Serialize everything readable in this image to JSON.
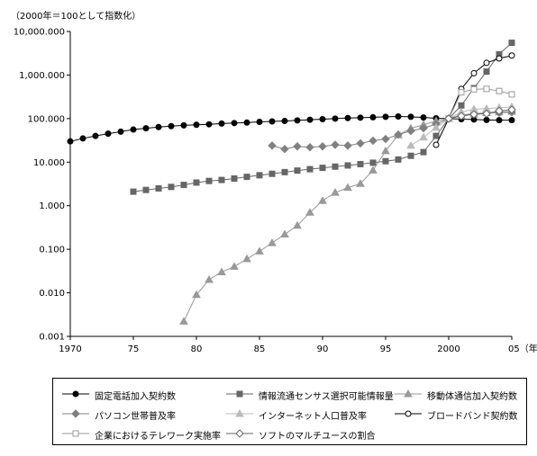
{
  "chart_data": {
    "type": "line",
    "note": "（2000年＝100として指数化）",
    "y_scale": "log",
    "ylim": [
      0.001,
      10000
    ],
    "xlim": [
      1970,
      2005
    ],
    "y_ticks": [
      "10,000.000",
      "1,000.000",
      "100.000",
      "10.000",
      "1.000",
      "0.100",
      "0.010",
      "0.001"
    ],
    "y_tick_values": [
      10000,
      1000,
      100,
      10,
      1,
      0.1,
      0.01,
      0.001
    ],
    "x_ticks": [
      "1970",
      "75",
      "80",
      "85",
      "90",
      "95",
      "2000",
      "05（年）"
    ],
    "x_tick_values": [
      1970,
      1975,
      1980,
      1985,
      1990,
      1995,
      2000,
      2005
    ],
    "series": [
      {
        "name": "固定電話加入契約数",
        "marker": "circle",
        "color": "#000000",
        "x": [
          1970,
          1971,
          1972,
          1973,
          1974,
          1975,
          1976,
          1977,
          1978,
          1979,
          1980,
          1981,
          1982,
          1983,
          1984,
          1985,
          1986,
          1987,
          1988,
          1989,
          1990,
          1991,
          1992,
          1993,
          1994,
          1995,
          1996,
          1997,
          1998,
          1999,
          2000,
          2001,
          2002,
          2003,
          2004,
          2005
        ],
        "y": [
          30,
          35,
          40,
          45,
          50,
          56,
          60,
          64,
          67,
          70,
          72,
          74,
          77,
          79,
          81,
          84,
          86,
          88,
          91,
          94,
          97,
          100,
          103,
          105,
          107,
          110,
          112,
          110,
          106,
          102,
          100,
          97,
          95,
          93,
          92,
          92
        ]
      },
      {
        "name": "情報流通センサス選択可能情報量",
        "marker": "square",
        "color": "#666666",
        "x": [
          1975,
          1976,
          1977,
          1978,
          1979,
          1980,
          1981,
          1982,
          1983,
          1984,
          1985,
          1986,
          1987,
          1988,
          1989,
          1990,
          1991,
          1992,
          1993,
          1994,
          1995,
          1996,
          1997,
          1998,
          1999,
          2000,
          2001,
          2002,
          2003,
          2004,
          2005
        ],
        "y": [
          2.1,
          2.3,
          2.5,
          2.7,
          3.0,
          3.4,
          3.7,
          3.9,
          4.2,
          4.6,
          5.0,
          5.4,
          5.9,
          6.4,
          6.9,
          7.4,
          7.9,
          8.4,
          9.0,
          9.7,
          10.5,
          11.5,
          14,
          17,
          40,
          100,
          200,
          500,
          1200,
          3000,
          5500
        ]
      },
      {
        "name": "移動体通信加入契約数",
        "marker": "triangle",
        "color": "#999999",
        "x": [
          1979,
          1980,
          1981,
          1982,
          1983,
          1984,
          1985,
          1986,
          1987,
          1988,
          1989,
          1990,
          1991,
          1992,
          1993,
          1994,
          1995,
          1996,
          1997,
          1998,
          1999,
          2000,
          2001,
          2002,
          2003,
          2004,
          2005
        ],
        "y": [
          0.0022,
          0.009,
          0.02,
          0.03,
          0.04,
          0.06,
          0.09,
          0.14,
          0.22,
          0.35,
          0.7,
          1.3,
          2.0,
          2.6,
          3.2,
          6.5,
          18,
          42,
          60,
          72,
          88,
          100,
          115,
          125,
          135,
          140,
          145
        ]
      },
      {
        "name": "パソコン世帯普及率",
        "marker": "diamond",
        "color": "#808080",
        "x": [
          1986,
          1987,
          1988,
          1989,
          1990,
          1991,
          1992,
          1993,
          1994,
          1995,
          1996,
          1997,
          1998,
          1999,
          2000,
          2001,
          2002,
          2003,
          2004,
          2005
        ],
        "y": [
          24,
          20,
          23,
          22,
          23,
          25,
          24,
          27,
          31,
          34,
          43,
          52,
          60,
          75,
          100,
          120,
          130,
          135,
          137,
          140
        ]
      },
      {
        "name": "インターネット人口普及率",
        "marker": "triangle",
        "color": "#bbbbbb",
        "x": [
          1997,
          1998,
          1999,
          2000,
          2001,
          2002,
          2003,
          2004,
          2005
        ],
        "y": [
          24,
          37,
          62,
          100,
          140,
          165,
          170,
          178,
          185
        ]
      },
      {
        "name": "ブロードバンド契約数",
        "marker": "circle-open",
        "color": "#000000",
        "x": [
          1999,
          2000,
          2001,
          2002,
          2003,
          2004,
          2005
        ],
        "y": [
          25,
          100,
          480,
          1100,
          1900,
          2400,
          2800
        ]
      },
      {
        "name": "企業におけるテレワーク実施率",
        "marker": "square-open",
        "color": "#999999",
        "x": [
          2000,
          2001,
          2002,
          2003,
          2004,
          2005
        ],
        "y": [
          100,
          400,
          470,
          480,
          430,
          360
        ]
      },
      {
        "name": "ソフトのマルチユースの割合",
        "marker": "diamond-open",
        "color": "#666666",
        "x": [
          2000,
          2001,
          2002,
          2003,
          2004,
          2005
        ],
        "y": [
          100,
          115,
          125,
          130,
          150,
          160
        ]
      }
    ]
  }
}
